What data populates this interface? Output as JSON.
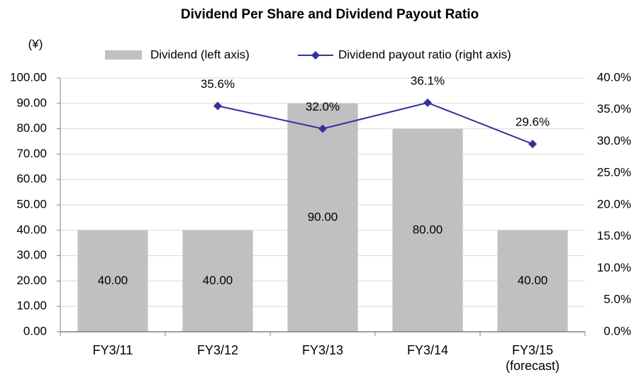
{
  "chart_data": {
    "type": "bar_line",
    "title": "Dividend Per Share and Dividend Payout Ratio",
    "ylabel": "(¥)",
    "categories": [
      "FY3/11",
      "FY3/12",
      "FY3/13",
      "FY3/14",
      "FY3/15\n(forecast)"
    ],
    "series": [
      {
        "name": "Dividend (left axis)",
        "type": "bar",
        "color": "#c0c0c0",
        "values": [
          40,
          40,
          90,
          80,
          40
        ],
        "value_labels": [
          "40.00",
          "40.00",
          "90.00",
          "80.00",
          "40.00"
        ]
      },
      {
        "name": "Dividend payout ratio (right axis)",
        "type": "line",
        "axis": "y2",
        "color": "#333399",
        "values": [
          null,
          35.6,
          32.0,
          36.1,
          29.6
        ],
        "value_labels": [
          null,
          "35.6%",
          "32.0%",
          "36.1%",
          "29.6%"
        ]
      }
    ],
    "ylim": [
      0,
      100
    ],
    "yticks": [
      {
        "value": 0,
        "label": "0.00"
      },
      {
        "value": 10,
        "label": "10.00"
      },
      {
        "value": 20,
        "label": "20.00"
      },
      {
        "value": 30,
        "label": "30.00"
      },
      {
        "value": 40,
        "label": "40.00"
      },
      {
        "value": 50,
        "label": "50.00"
      },
      {
        "value": 60,
        "label": "60.00"
      },
      {
        "value": 70,
        "label": "70.00"
      },
      {
        "value": 80,
        "label": "80.00"
      },
      {
        "value": 90,
        "label": "90.00"
      },
      {
        "value": 100,
        "label": "100.00"
      }
    ],
    "y2lim": [
      0,
      40
    ],
    "y2ticks": [
      {
        "value": 0,
        "label": "0.0%"
      },
      {
        "value": 5,
        "label": "5.0%"
      },
      {
        "value": 10,
        "label": "10.0%"
      },
      {
        "value": 15,
        "label": "15.0%"
      },
      {
        "value": 20,
        "label": "20.0%"
      },
      {
        "value": 25,
        "label": "25.0%"
      },
      {
        "value": 30,
        "label": "30.0%"
      },
      {
        "value": 35,
        "label": "35.0%"
      },
      {
        "value": 40,
        "label": "40.0%"
      }
    ],
    "grid": true
  }
}
